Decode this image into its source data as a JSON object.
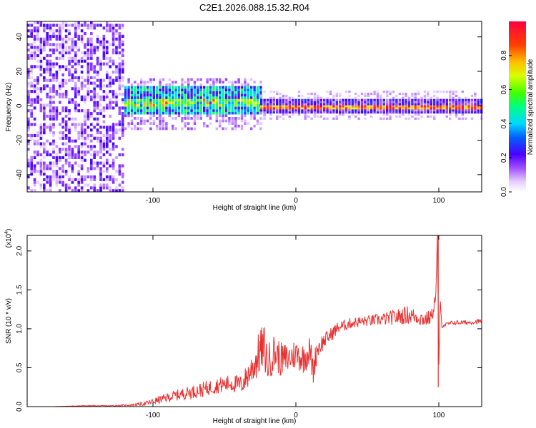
{
  "title": "C2E1.2026.088.15.32.R04",
  "colors": {
    "line": "#e83030",
    "frame": "#000000",
    "background": "#ffffff"
  },
  "chart_data": [
    {
      "type": "heatmap",
      "name": "spectrogram",
      "xlabel": "Height of straight line (km)",
      "ylabel": "Frequency (Hz)",
      "xlim": [
        -188,
        130
      ],
      "ylim": [
        -50,
        49
      ],
      "xticks": [
        -100,
        0,
        100
      ],
      "xtick_labels": [
        "-100",
        "0",
        "100"
      ],
      "yticks": [
        -40,
        -20,
        0,
        20,
        40
      ],
      "ytick_labels": [
        "-40",
        "-20",
        "0",
        "20",
        "40"
      ],
      "colorbar": {
        "label": "Normalized spectral amplitude",
        "range": [
          0,
          1
        ],
        "ticks": [
          0.0,
          0.2,
          0.4,
          0.6,
          0.8
        ],
        "tick_labels": [
          "0.0",
          "0.2",
          "0.4",
          "0.6",
          "0.8"
        ]
      },
      "regions": [
        {
          "x_from": -188,
          "x_to": -120,
          "description": "broadband noise",
          "freq_from": -50,
          "freq_to": 49,
          "amplitude": 0.12
        },
        {
          "x_from": -120,
          "x_to": -25,
          "description": "signal band",
          "freq_from": -6,
          "freq_to": 10,
          "amplitude": 0.45
        },
        {
          "x_from": -25,
          "x_to": 130,
          "description": "narrow carrier",
          "freq_from": -2,
          "freq_to": 0,
          "amplitude": 0.9
        }
      ]
    },
    {
      "type": "line",
      "name": "snr",
      "xlabel": "Height of straight line (km)",
      "ylabel": "SNR (10 * v/v)",
      "y_scale_label": "(x10",
      "y_scale_exponent": "4",
      "xlim": [
        -188,
        130
      ],
      "ylim": [
        0,
        2.2
      ],
      "xticks": [
        -100,
        0,
        100
      ],
      "xtick_labels": [
        "-100",
        "0",
        "100"
      ],
      "yticks": [
        0.0,
        0.5,
        1.0,
        1.5,
        2.0
      ],
      "ytick_labels": [
        "0.0",
        "0.5",
        "1.0",
        "1.5",
        "2.0"
      ],
      "series": [
        {
          "name": "SNR",
          "x": [
            -188,
            -170,
            -150,
            -130,
            -115,
            -105,
            -95,
            -85,
            -75,
            -65,
            -55,
            -45,
            -38,
            -32,
            -28,
            -25,
            -22,
            -20,
            -15,
            -10,
            -5,
            0,
            5,
            10,
            12,
            15,
            20,
            30,
            40,
            50,
            60,
            70,
            78,
            85,
            90,
            95,
            98,
            99,
            100,
            101,
            102,
            105,
            110,
            120,
            130
          ],
          "y": [
            0.0,
            0.0,
            0.01,
            0.01,
            0.02,
            0.04,
            0.09,
            0.14,
            0.18,
            0.22,
            0.27,
            0.3,
            0.28,
            0.45,
            0.58,
            0.72,
            0.75,
            0.55,
            0.7,
            0.6,
            0.62,
            0.68,
            0.62,
            0.72,
            0.45,
            0.75,
            0.85,
            1.02,
            1.08,
            1.1,
            1.12,
            1.15,
            1.18,
            1.15,
            1.12,
            1.15,
            1.45,
            2.2,
            0.5,
            1.35,
            1.05,
            1.05,
            1.08,
            1.08,
            1.1
          ],
          "noise_amplitude": [
            0.0,
            0.0,
            0.005,
            0.005,
            0.01,
            0.03,
            0.05,
            0.07,
            0.08,
            0.1,
            0.1,
            0.12,
            0.12,
            0.2,
            0.25,
            0.3,
            0.3,
            0.25,
            0.25,
            0.22,
            0.2,
            0.2,
            0.2,
            0.2,
            0.2,
            0.15,
            0.1,
            0.08,
            0.07,
            0.07,
            0.08,
            0.1,
            0.12,
            0.1,
            0.1,
            0.1,
            0.1,
            0.0,
            0.0,
            0.05,
            0.04,
            0.03,
            0.03,
            0.03,
            0.03
          ]
        }
      ]
    }
  ]
}
